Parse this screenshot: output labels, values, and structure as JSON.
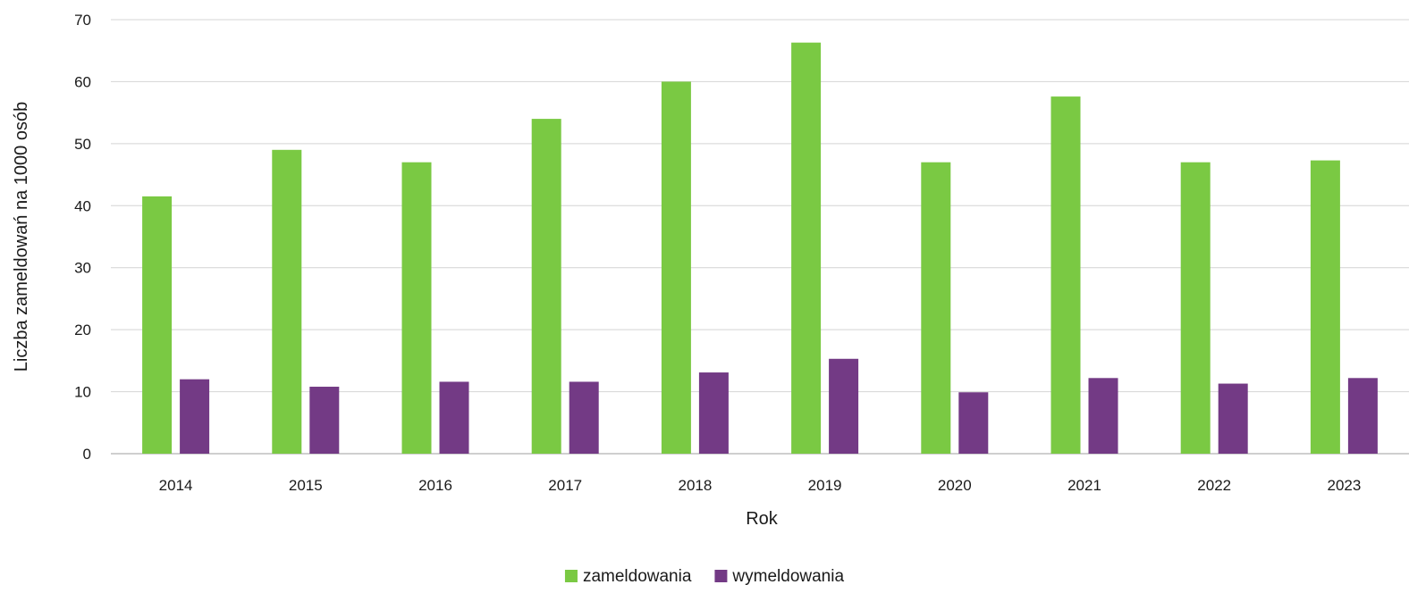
{
  "chart_data": {
    "type": "bar",
    "title": "",
    "xlabel": "Rok",
    "ylabel": "Liczba zameldowań na 1000 osób",
    "ylim": [
      0,
      70
    ],
    "yticks": [
      0,
      10,
      20,
      30,
      40,
      50,
      60,
      70
    ],
    "grid": true,
    "legend_position": "bottom",
    "categories": [
      "2014",
      "2015",
      "2016",
      "2017",
      "2018",
      "2019",
      "2020",
      "2021",
      "2022",
      "2023"
    ],
    "series": [
      {
        "name": "zameldowania",
        "color": "#7ac943",
        "values": [
          41.5,
          49,
          47,
          54,
          60,
          66.3,
          47,
          57.6,
          47,
          47.3
        ]
      },
      {
        "name": "wymeldowania",
        "color": "#733a85",
        "values": [
          12,
          10.8,
          11.6,
          11.6,
          13.1,
          15.3,
          9.9,
          12.2,
          11.3,
          12.2
        ]
      }
    ]
  }
}
